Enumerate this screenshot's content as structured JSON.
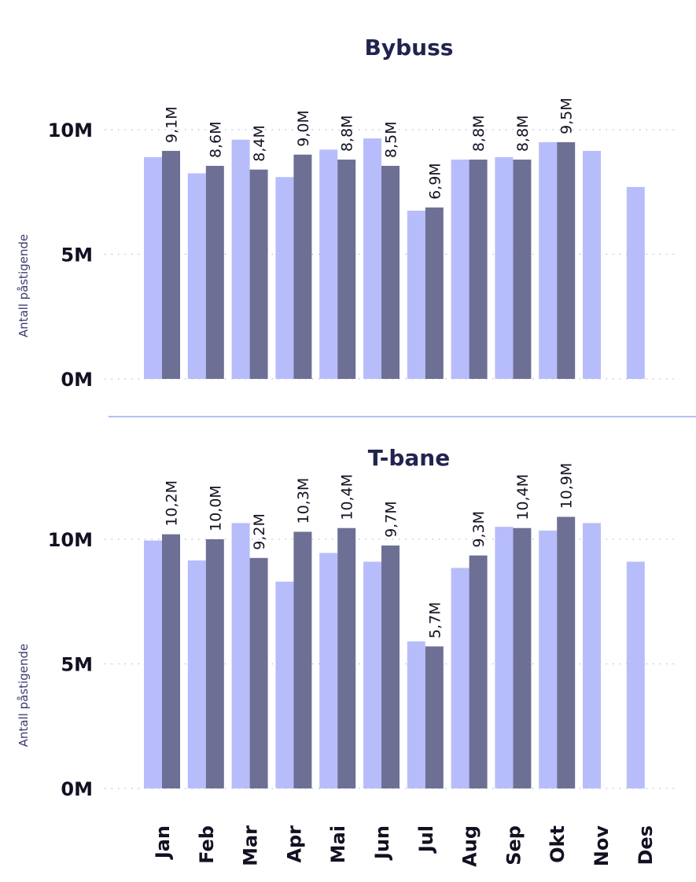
{
  "chart_data": [
    {
      "type": "bar",
      "title": "Bybuss",
      "ylabel": "Antall påstigende",
      "categories": [
        "Jan",
        "Feb",
        "Mar",
        "Apr",
        "Mai",
        "Jun",
        "Jul",
        "Aug",
        "Sep",
        "Okt",
        "Nov",
        "Des"
      ],
      "ylim": [
        0,
        12000000
      ],
      "yticks": [
        0,
        5000000,
        10000000
      ],
      "yticklabels": [
        "0M",
        "5M",
        "10M"
      ],
      "grid": true,
      "series": [
        {
          "values": [
            8900000,
            8250000,
            9600000,
            8100000,
            9200000,
            9650000,
            6750000,
            8800000,
            8900000,
            9500000,
            9150000,
            7700000
          ],
          "color": "#b7bdfb"
        },
        {
          "values": [
            9150000,
            8550000,
            8400000,
            9000000,
            8800000,
            8550000,
            6880000,
            8800000,
            8800000,
            9500000,
            null,
            null
          ],
          "labels": [
            "9,1M",
            "8,6M",
            "8,4M",
            "9,0M",
            "8,8M",
            "8,5M",
            "6,9M",
            "8,8M",
            "8,8M",
            "9,5M",
            "",
            ""
          ],
          "color": "#6d7094"
        }
      ]
    },
    {
      "type": "bar",
      "title": "T-bane",
      "ylabel": "Antall påstigende",
      "categories": [
        "Jan",
        "Feb",
        "Mar",
        "Apr",
        "Mai",
        "Jun",
        "Jul",
        "Aug",
        "Sep",
        "Okt",
        "Nov",
        "Des"
      ],
      "ylim": [
        0,
        12000000
      ],
      "yticks": [
        0,
        5000000,
        10000000
      ],
      "yticklabels": [
        "0M",
        "5M",
        "10M"
      ],
      "grid": true,
      "series": [
        {
          "values": [
            9950000,
            9150000,
            10650000,
            8300000,
            9450000,
            9100000,
            5900000,
            8850000,
            10500000,
            10350000,
            10650000,
            9100000
          ],
          "color": "#b7bdfb"
        },
        {
          "values": [
            10200000,
            10000000,
            9250000,
            10300000,
            10450000,
            9750000,
            5700000,
            9350000,
            10450000,
            10900000,
            null,
            null
          ],
          "labels": [
            "10,2M",
            "10,0M",
            "9,2M",
            "10,3M",
            "10,4M",
            "9,7M",
            "5,7M",
            "9,3M",
            "10,4M",
            "10,9M",
            "",
            ""
          ],
          "color": "#6d7094"
        }
      ]
    }
  ],
  "colors": {
    "light_bar": "#b7bdfb",
    "dark_bar": "#6d7094",
    "title": "#22244f",
    "separator": "#b7bdfb"
  }
}
